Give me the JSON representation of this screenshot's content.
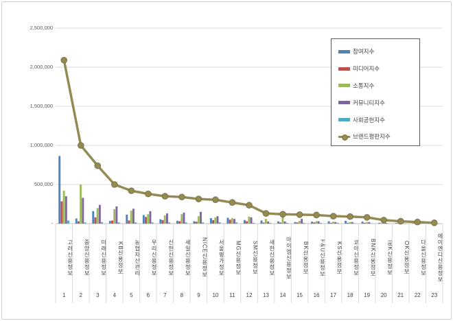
{
  "page": {
    "background": "#ffffff",
    "frame_color": "#cfcfcf"
  },
  "chart_data": {
    "type": "bar+line combo",
    "title": "",
    "xlabel": "",
    "ylabel": "",
    "grid": true,
    "legend_position": "right-top",
    "categories": [
      "고려신용정보",
      "중앙신용정보",
      "미래신용정보",
      "KB신용정보",
      "농협자산관리",
      "우리신용정보",
      "신한신용정보",
      "세일신용정보",
      "NICE신용정보",
      "서울평가정보",
      "MG신용정보",
      "SM신용정보",
      "새한신용정보",
      "아이엠신용정보",
      "BK신용정보",
      "F&U신용정보",
      "KS신용정보",
      "코아신용정보",
      "BNK신용정보",
      "IBK신용정보",
      "OK신용정보",
      "다올신용정보",
      "에이엔디신용정보"
    ],
    "category_numbers": [
      "1",
      "2",
      "3",
      "4",
      "5",
      "6",
      "7",
      "8",
      "9",
      "10",
      "11",
      "12",
      "13",
      "14",
      "15",
      "16",
      "17",
      "18",
      "19",
      "20",
      "21",
      "22",
      "23"
    ],
    "y_axis": {
      "min": 0,
      "max": 2500000,
      "step": 500000,
      "tick_labels_top_to_bottom": [
        "2,500,000",
        "2,000,000",
        "1,500,000",
        "1,000,000",
        "500,000",
        "-"
      ]
    },
    "series": [
      {
        "name": "참여지수",
        "type": "bar",
        "color": "#4F81BD",
        "values": [
          865000,
          65000,
          160000,
          35000,
          115000,
          110000,
          55000,
          35000,
          30000,
          70000,
          75000,
          45000,
          40000,
          28000,
          20000,
          25000,
          30000,
          35000,
          25000,
          10000,
          8000,
          5000,
          3000
        ]
      },
      {
        "name": "미디어지수",
        "type": "bar",
        "color": "#C0504D",
        "values": [
          285000,
          30000,
          80000,
          40000,
          40000,
          85000,
          45000,
          30000,
          25000,
          45000,
          50000,
          30000,
          12000,
          14000,
          15000,
          15000,
          10000,
          10000,
          10000,
          5000,
          5000,
          3000,
          2000
        ]
      },
      {
        "name": "소통지수",
        "type": "bar",
        "color": "#9BBB59",
        "values": [
          420000,
          500000,
          200000,
          185000,
          165000,
          120000,
          105000,
          120000,
          95000,
          80000,
          70000,
          90000,
          60000,
          95000,
          35000,
          30000,
          25000,
          20000,
          20000,
          15000,
          10000,
          6000,
          4000
        ]
      },
      {
        "name": "커뮤니티지수",
        "type": "bar",
        "color": "#8064A2",
        "values": [
          350000,
          330000,
          240000,
          220000,
          190000,
          160000,
          130000,
          140000,
          150000,
          95000,
          60000,
          80000,
          28000,
          28000,
          60000,
          30000,
          20000,
          20000,
          20000,
          10000,
          6000,
          5000,
          3000
        ]
      },
      {
        "name": "사회공헌지수",
        "type": "bar",
        "color": "#4BACC6",
        "values": [
          40000,
          15000,
          20000,
          15000,
          15000,
          15000,
          15000,
          15000,
          15000,
          15000,
          15000,
          10000,
          10000,
          10000,
          10000,
          10000,
          10000,
          5000,
          5000,
          5000,
          4000,
          2000,
          1000
        ]
      },
      {
        "name": "브랜드평판지수",
        "type": "line",
        "color": "#948A54",
        "marker_stroke": "#7B7243",
        "values": [
          2090000,
          1000000,
          740000,
          500000,
          420000,
          380000,
          350000,
          340000,
          315000,
          305000,
          270000,
          235000,
          130000,
          120000,
          115000,
          110000,
          95000,
          90000,
          80000,
          45000,
          30000,
          20000,
          10000
        ]
      }
    ],
    "colors": {
      "gridline": "#d9d9d9",
      "axis_line": "#bfbfbf",
      "axis_text": "#595959",
      "category_text": "#404040",
      "legend_border": "#595959"
    }
  }
}
